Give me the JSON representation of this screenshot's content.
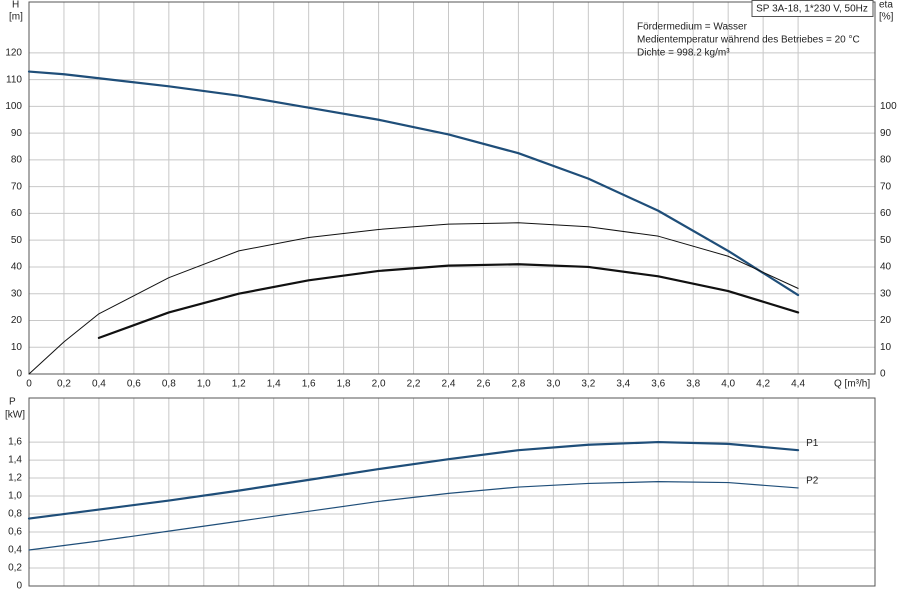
{
  "chart_data": [
    {
      "type": "line",
      "title": "SP 3A-18, 1*230 V, 50Hz",
      "annotations": [
        "Fördermedium = Wasser",
        "Medientemperatur während des Betriebes = 20 °C",
        "Dichte = 998.2 kg/m³"
      ],
      "y_label": [
        "H",
        "[m]"
      ],
      "y2_label": [
        "eta",
        "[%]"
      ],
      "x_label": "Q [m³/h]",
      "x": [
        0,
        0.2,
        0.4,
        0.8,
        1.2,
        1.6,
        2.0,
        2.4,
        2.8,
        3.2,
        3.6,
        4.0,
        4.4
      ],
      "series": [
        {
          "color": "#1f4e79",
          "values": [
            113,
            112,
            110.5,
            107.5,
            104,
            99.5,
            95,
            89.5,
            82.5,
            73,
            61,
            46,
            29.5
          ]
        },
        {
          "color": "#111111",
          "axis": "y2",
          "values": [
            0,
            12,
            22.5,
            36,
            46,
            51,
            54,
            56,
            56.5,
            55,
            51.5,
            44,
            32
          ]
        },
        {
          "color": "#111111",
          "axis": "y2",
          "values": [
            null,
            null,
            13.5,
            23,
            30,
            35,
            38.5,
            40.5,
            41,
            40,
            36.5,
            31,
            23
          ]
        }
      ],
      "xlim": [
        0,
        4.84
      ],
      "xticks": [
        0,
        {
          "value": 0.2,
          "label": "0,2"
        },
        {
          "value": 0.4,
          "label": "0,4"
        },
        {
          "value": 0.6,
          "label": "0,6"
        },
        {
          "value": 0.8,
          "label": "0,8"
        },
        {
          "value": 1.0,
          "label": "1,0"
        },
        {
          "value": 1.2,
          "label": "1,2"
        },
        {
          "value": 1.4,
          "label": "1,4"
        },
        {
          "value": 1.6,
          "label": "1,6"
        },
        {
          "value": 1.8,
          "label": "1,8"
        },
        {
          "value": 2.0,
          "label": "2,0"
        },
        {
          "value": 2.2,
          "label": "2,2"
        },
        {
          "value": 2.4,
          "label": "2,4"
        },
        {
          "value": 2.6,
          "label": "2,6"
        },
        {
          "value": 2.8,
          "label": "2,8"
        },
        {
          "value": 3.0,
          "label": "3,0"
        },
        {
          "value": 3.2,
          "label": "3,2"
        },
        {
          "value": 3.4,
          "label": "3,4"
        },
        {
          "value": 3.6,
          "label": "3,6"
        },
        {
          "value": 3.8,
          "label": "3,8"
        },
        {
          "value": 4.0,
          "label": "4,0"
        },
        {
          "value": 4.2,
          "label": "4,2"
        },
        {
          "value": 4.4,
          "label": "4,4"
        }
      ],
      "ylim": [
        0,
        139
      ],
      "yticks": [
        0,
        10,
        20,
        30,
        40,
        50,
        60,
        70,
        80,
        90,
        100,
        110,
        120
      ],
      "y2lim": [
        0,
        139
      ],
      "y2ticks": [
        0,
        10,
        20,
        30,
        40,
        50,
        60,
        70,
        80,
        90,
        100
      ],
      "grid": true
    },
    {
      "type": "line",
      "y_label": [
        "P",
        "[kW]"
      ],
      "x": [
        0,
        0.2,
        0.4,
        0.8,
        1.2,
        1.6,
        2.0,
        2.4,
        2.8,
        3.2,
        3.6,
        4.0,
        4.4
      ],
      "series": [
        {
          "name": "P1",
          "color": "#1f4e79",
          "values": [
            0.75,
            0.8,
            0.85,
            0.95,
            1.06,
            1.18,
            1.3,
            1.41,
            1.51,
            1.57,
            1.6,
            1.58,
            1.51
          ]
        },
        {
          "name": "P2",
          "color": "#1f4e79",
          "values": [
            0.4,
            0.45,
            0.5,
            0.61,
            0.72,
            0.83,
            0.94,
            1.03,
            1.1,
            1.14,
            1.16,
            1.15,
            1.09
          ]
        }
      ],
      "xlim": [
        0,
        4.84
      ],
      "ylim": [
        0,
        2.09
      ],
      "yticks": [
        0,
        {
          "value": 0.2,
          "label": "0,2"
        },
        {
          "value": 0.4,
          "label": "0,4"
        },
        {
          "value": 0.6,
          "label": "0,6"
        },
        {
          "value": 0.8,
          "label": "0,8"
        },
        {
          "value": 1.0,
          "label": "1,0"
        },
        {
          "value": 1.2,
          "label": "1,2"
        },
        {
          "value": 1.4,
          "label": "1,4"
        },
        {
          "value": 1.6,
          "label": "1,6"
        }
      ],
      "grid": true
    }
  ]
}
